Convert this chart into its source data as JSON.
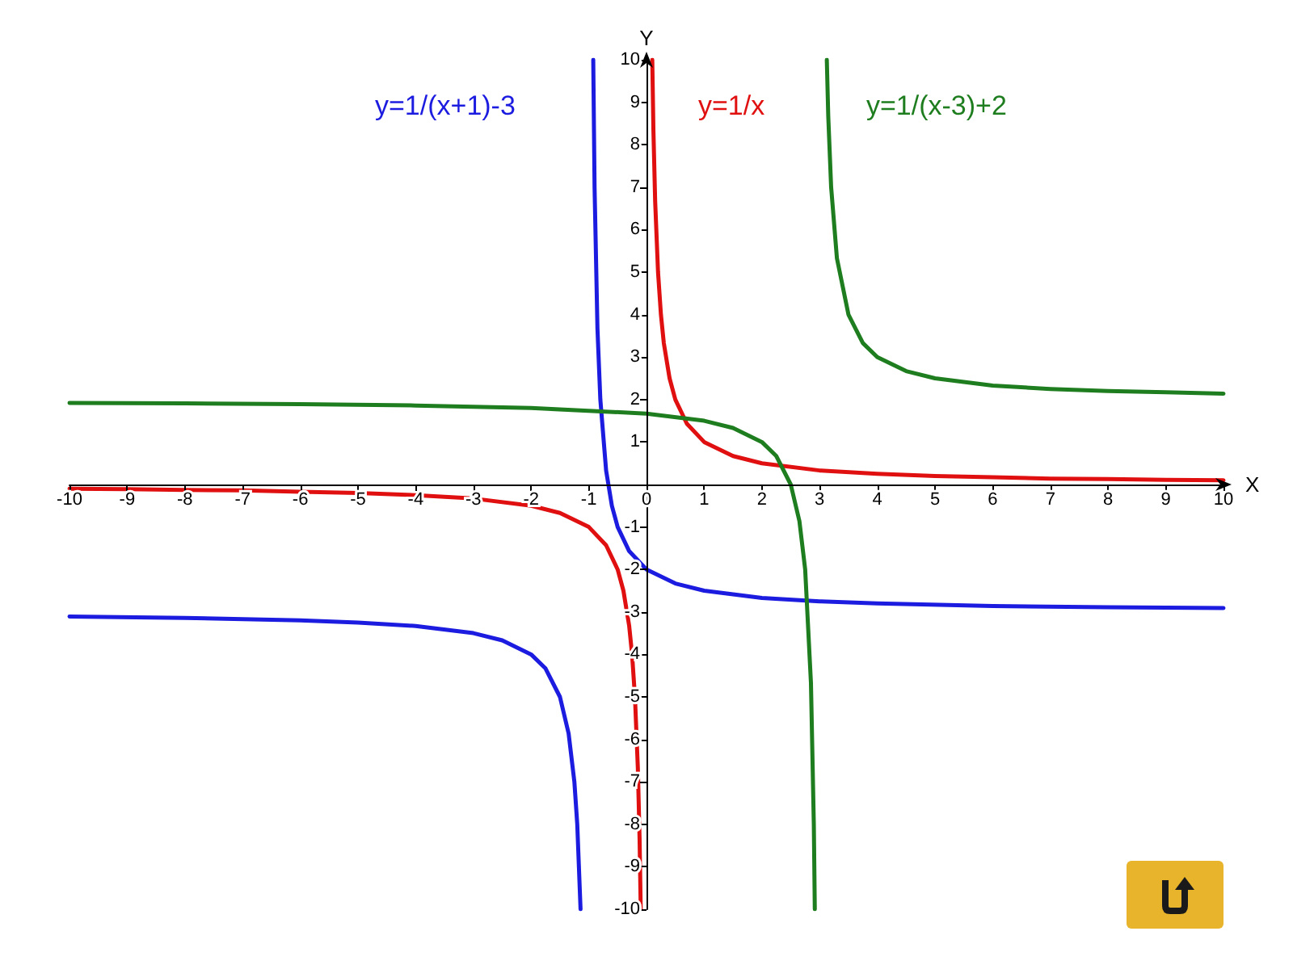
{
  "chart_data": {
    "type": "line",
    "xlabel": "X",
    "ylabel": "Y",
    "xlim": [
      -10,
      10
    ],
    "ylim": [
      -10,
      10
    ],
    "xticks": [
      -10,
      -9,
      -8,
      -7,
      -6,
      -5,
      -4,
      -3,
      -2,
      -1,
      0,
      1,
      2,
      3,
      4,
      5,
      6,
      7,
      8,
      9,
      10
    ],
    "yticks": [
      -10,
      -9,
      -8,
      -7,
      -6,
      -5,
      -4,
      -3,
      -2,
      -1,
      1,
      2,
      3,
      4,
      5,
      6,
      7,
      8,
      9,
      10
    ],
    "grid": false,
    "legend": false,
    "marker": "none",
    "line_style": "solid",
    "series": [
      {
        "name": "y=1/(x+1)-3",
        "color": "#1c1ce0",
        "x": [
          -10,
          -8,
          -6,
          -5,
          -4,
          -3,
          -2.5,
          -2,
          -1.75,
          -1.5,
          -1.35,
          -1.25,
          -1.2,
          -1.143,
          null,
          -0.923,
          -0.9,
          -0.85,
          -0.8,
          -0.7,
          -0.6,
          -0.5,
          -0.3,
          0,
          0.5,
          1,
          2,
          3,
          4,
          6,
          8,
          10
        ],
        "values": [
          -3.11,
          -3.14,
          -3.2,
          -3.25,
          -3.33,
          -3.5,
          -3.67,
          -4,
          -4.33,
          -5,
          -5.86,
          -7,
          -8,
          -10,
          null,
          10,
          7,
          3.67,
          2,
          0.33,
          -0.5,
          -1,
          -1.57,
          -2,
          -2.33,
          -2.5,
          -2.67,
          -2.75,
          -2.8,
          -2.86,
          -2.89,
          -2.91
        ]
      },
      {
        "name": "y=1/x",
        "color": "#e01010",
        "x": [
          -10,
          -9,
          -8,
          -7,
          -6,
          -5,
          -4,
          -3,
          -2,
          -1.5,
          -1,
          -0.7,
          -0.5,
          -0.4,
          -0.3,
          -0.25,
          -0.2,
          -0.15,
          -0.12,
          -0.1,
          null,
          0.1,
          0.12,
          0.15,
          0.2,
          0.25,
          0.3,
          0.4,
          0.5,
          0.7,
          1,
          1.5,
          2,
          3,
          4,
          5,
          6,
          7,
          8,
          9,
          10
        ],
        "values": [
          -0.1,
          -0.11,
          -0.13,
          -0.14,
          -0.17,
          -0.2,
          -0.25,
          -0.33,
          -0.5,
          -0.67,
          -1,
          -1.43,
          -2,
          -2.5,
          -3.33,
          -4,
          -5,
          -6.67,
          -8.33,
          -10,
          null,
          10,
          8.33,
          6.67,
          5,
          4,
          3.33,
          2.5,
          2,
          1.43,
          1,
          0.67,
          0.5,
          0.33,
          0.25,
          0.2,
          0.17,
          0.14,
          0.13,
          0.11,
          0.1
        ]
      },
      {
        "name": "y=1/(x-3)+2",
        "color": "#1e7d1e",
        "x": [
          -10,
          -8,
          -6,
          -4,
          -2,
          0,
          1,
          1.5,
          2,
          2.25,
          2.5,
          2.65,
          2.75,
          2.85,
          2.9,
          2.917,
          null,
          3.125,
          3.15,
          3.2,
          3.3,
          3.5,
          3.75,
          4,
          4.5,
          5,
          6,
          7,
          8,
          9,
          10
        ],
        "values": [
          1.92,
          1.91,
          1.89,
          1.86,
          1.8,
          1.67,
          1.5,
          1.33,
          1,
          0.67,
          0,
          -0.86,
          -2,
          -4.67,
          -8,
          -10,
          null,
          10,
          8.67,
          7,
          5.33,
          4,
          3.33,
          3,
          2.67,
          2.5,
          2.33,
          2.25,
          2.2,
          2.17,
          2.14
        ]
      }
    ]
  }
}
